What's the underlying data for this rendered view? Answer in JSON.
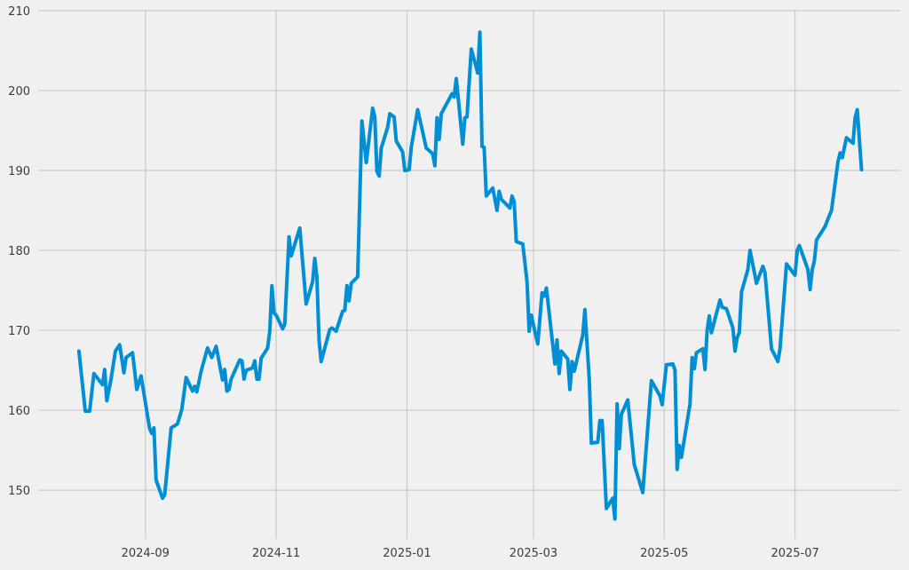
{
  "chart_data": {
    "type": "line",
    "title": "",
    "xlabel": "",
    "ylabel": "",
    "grid": true,
    "legend": "none",
    "line_color": "#008fd5",
    "background_color": "#f0f0f0",
    "grid_color": "#cbcbcb",
    "xlim": [
      "2024-07-13",
      "2025-08-19"
    ],
    "ylim": [
      143.9,
      210
    ],
    "x_ticks": [
      {
        "date": "2024-09-01",
        "label": "2024-09"
      },
      {
        "date": "2024-11-01",
        "label": "2024-11"
      },
      {
        "date": "2025-01-01",
        "label": "2025-01"
      },
      {
        "date": "2025-03-01",
        "label": "2025-03"
      },
      {
        "date": "2025-05-01",
        "label": "2025-05"
      },
      {
        "date": "2025-07-01",
        "label": "2025-07"
      }
    ],
    "y_ticks": [
      {
        "value": 150,
        "label": "150"
      },
      {
        "value": 160,
        "label": "160"
      },
      {
        "value": 170,
        "label": "170"
      },
      {
        "value": 180,
        "label": "180"
      },
      {
        "value": 190,
        "label": "190"
      },
      {
        "value": 200,
        "label": "200"
      },
      {
        "value": 210,
        "label": "210"
      }
    ],
    "series": [
      {
        "points": [
          [
            "2024-08-01",
            167.4
          ],
          [
            "2024-08-04",
            159.9
          ],
          [
            "2024-08-06",
            159.9
          ],
          [
            "2024-08-08",
            164.6
          ],
          [
            "2024-08-12",
            163.2
          ],
          [
            "2024-08-13",
            165.1
          ],
          [
            "2024-08-14",
            161.2
          ],
          [
            "2024-08-16",
            163.9
          ],
          [
            "2024-08-18",
            167.4
          ],
          [
            "2024-08-20",
            168.2
          ],
          [
            "2024-08-22",
            164.7
          ],
          [
            "2024-08-23",
            166.6
          ],
          [
            "2024-08-26",
            167.2
          ],
          [
            "2024-08-28",
            162.6
          ],
          [
            "2024-08-30",
            164.3
          ],
          [
            "2024-09-03",
            157.7
          ],
          [
            "2024-09-04",
            157.1
          ],
          [
            "2024-09-05",
            157.8
          ],
          [
            "2024-09-06",
            151.3
          ],
          [
            "2024-09-09",
            149.0
          ],
          [
            "2024-09-10",
            149.4
          ],
          [
            "2024-09-13",
            157.8
          ],
          [
            "2024-09-16",
            158.3
          ],
          [
            "2024-09-18",
            160.1
          ],
          [
            "2024-09-20",
            164.1
          ],
          [
            "2024-09-23",
            162.4
          ],
          [
            "2024-09-24",
            163.0
          ],
          [
            "2024-09-25",
            162.3
          ],
          [
            "2024-09-27",
            164.9
          ],
          [
            "2024-09-30",
            167.8
          ],
          [
            "2024-10-02",
            166.6
          ],
          [
            "2024-10-04",
            168.0
          ],
          [
            "2024-10-07",
            163.8
          ],
          [
            "2024-10-08",
            165.1
          ],
          [
            "2024-10-09",
            162.4
          ],
          [
            "2024-10-10",
            162.6
          ],
          [
            "2024-10-11",
            163.9
          ],
          [
            "2024-10-15",
            166.3
          ],
          [
            "2024-10-16",
            166.2
          ],
          [
            "2024-10-17",
            163.9
          ],
          [
            "2024-10-18",
            165.0
          ],
          [
            "2024-10-21",
            165.3
          ],
          [
            "2024-10-22",
            166.2
          ],
          [
            "2024-10-23",
            163.9
          ],
          [
            "2024-10-24",
            163.9
          ],
          [
            "2024-10-25",
            166.5
          ],
          [
            "2024-10-28",
            167.8
          ],
          [
            "2024-10-29",
            169.9
          ],
          [
            "2024-10-30",
            175.6
          ],
          [
            "2024-10-31",
            172.2
          ],
          [
            "2024-11-01",
            171.9
          ],
          [
            "2024-11-04",
            170.2
          ],
          [
            "2024-11-05",
            170.8
          ],
          [
            "2024-11-07",
            181.7
          ],
          [
            "2024-11-08",
            179.3
          ],
          [
            "2024-11-12",
            182.8
          ],
          [
            "2024-11-15",
            173.3
          ],
          [
            "2024-11-18",
            176.1
          ],
          [
            "2024-11-19",
            179.0
          ],
          [
            "2024-11-20",
            176.7
          ],
          [
            "2024-11-21",
            168.8
          ],
          [
            "2024-11-22",
            166.1
          ],
          [
            "2024-11-26",
            170.1
          ],
          [
            "2024-11-27",
            170.3
          ],
          [
            "2024-11-29",
            169.9
          ],
          [
            "2024-12-02",
            172.4
          ],
          [
            "2024-12-03",
            172.5
          ],
          [
            "2024-12-04",
            175.6
          ],
          [
            "2024-12-05",
            173.7
          ],
          [
            "2024-12-06",
            175.9
          ],
          [
            "2024-12-09",
            176.7
          ],
          [
            "2024-12-11",
            196.2
          ],
          [
            "2024-12-13",
            191.0
          ],
          [
            "2024-12-16",
            197.8
          ],
          [
            "2024-12-17",
            196.7
          ],
          [
            "2024-12-18",
            189.9
          ],
          [
            "2024-12-19",
            189.3
          ],
          [
            "2024-12-20",
            192.8
          ],
          [
            "2024-12-23",
            195.4
          ],
          [
            "2024-12-24",
            197.1
          ],
          [
            "2024-12-26",
            196.7
          ],
          [
            "2024-12-27",
            193.7
          ],
          [
            "2024-12-30",
            192.3
          ],
          [
            "2024-12-31",
            190.0
          ],
          [
            "2025-01-02",
            190.1
          ],
          [
            "2025-01-03",
            192.9
          ],
          [
            "2025-01-06",
            197.6
          ],
          [
            "2025-01-10",
            192.8
          ],
          [
            "2025-01-13",
            192.1
          ],
          [
            "2025-01-14",
            190.6
          ],
          [
            "2025-01-15",
            196.6
          ],
          [
            "2025-01-16",
            193.9
          ],
          [
            "2025-01-17",
            197.1
          ],
          [
            "2025-01-22",
            199.6
          ],
          [
            "2025-01-23",
            199.2
          ],
          [
            "2025-01-24",
            201.5
          ],
          [
            "2025-01-27",
            193.3
          ],
          [
            "2025-01-28",
            196.6
          ],
          [
            "2025-01-29",
            196.7
          ],
          [
            "2025-01-31",
            205.2
          ],
          [
            "2025-02-03",
            202.2
          ],
          [
            "2025-02-04",
            207.3
          ],
          [
            "2025-02-05",
            193.0
          ],
          [
            "2025-02-06",
            192.9
          ],
          [
            "2025-02-07",
            186.8
          ],
          [
            "2025-02-10",
            187.8
          ],
          [
            "2025-02-12",
            185.0
          ],
          [
            "2025-02-13",
            187.4
          ],
          [
            "2025-02-14",
            186.4
          ],
          [
            "2025-02-18",
            185.3
          ],
          [
            "2025-02-19",
            186.8
          ],
          [
            "2025-02-20",
            186.1
          ],
          [
            "2025-02-21",
            181.1
          ],
          [
            "2025-02-24",
            180.8
          ],
          [
            "2025-02-26",
            176.1
          ],
          [
            "2025-02-27",
            169.9
          ],
          [
            "2025-02-28",
            171.9
          ],
          [
            "2025-03-03",
            168.3
          ],
          [
            "2025-03-05",
            174.7
          ],
          [
            "2025-03-06",
            174.3
          ],
          [
            "2025-03-07",
            175.3
          ],
          [
            "2025-03-11",
            165.8
          ],
          [
            "2025-03-12",
            168.8
          ],
          [
            "2025-03-13",
            164.6
          ],
          [
            "2025-03-14",
            167.4
          ],
          [
            "2025-03-17",
            166.4
          ],
          [
            "2025-03-18",
            162.6
          ],
          [
            "2025-03-19",
            166.1
          ],
          [
            "2025-03-20",
            164.9
          ],
          [
            "2025-03-24",
            169.4
          ],
          [
            "2025-03-25",
            172.6
          ],
          [
            "2025-03-27",
            163.9
          ],
          [
            "2025-03-28",
            155.9
          ],
          [
            "2025-03-31",
            156.0
          ],
          [
            "2025-04-01",
            158.7
          ],
          [
            "2025-04-02",
            158.7
          ],
          [
            "2025-04-04",
            147.7
          ],
          [
            "2025-04-07",
            149.0
          ],
          [
            "2025-04-08",
            146.4
          ],
          [
            "2025-04-09",
            160.8
          ],
          [
            "2025-04-10",
            155.2
          ],
          [
            "2025-04-11",
            159.5
          ],
          [
            "2025-04-14",
            161.3
          ],
          [
            "2025-04-17",
            153.2
          ],
          [
            "2025-04-21",
            149.7
          ],
          [
            "2025-04-25",
            163.7
          ],
          [
            "2025-04-29",
            161.8
          ],
          [
            "2025-04-30",
            160.7
          ],
          [
            "2025-05-02",
            165.7
          ],
          [
            "2025-05-05",
            165.8
          ],
          [
            "2025-05-06",
            165.0
          ],
          [
            "2025-05-07",
            152.6
          ],
          [
            "2025-05-08",
            155.6
          ],
          [
            "2025-05-09",
            154.1
          ],
          [
            "2025-05-13",
            160.8
          ],
          [
            "2025-05-14",
            166.6
          ],
          [
            "2025-05-15",
            165.2
          ],
          [
            "2025-05-16",
            167.2
          ],
          [
            "2025-05-19",
            167.7
          ],
          [
            "2025-05-20",
            165.1
          ],
          [
            "2025-05-21",
            170.0
          ],
          [
            "2025-05-22",
            171.8
          ],
          [
            "2025-05-23",
            169.7
          ],
          [
            "2025-05-27",
            173.8
          ],
          [
            "2025-05-28",
            172.9
          ],
          [
            "2025-05-30",
            172.7
          ],
          [
            "2025-06-02",
            170.3
          ],
          [
            "2025-06-03",
            167.4
          ],
          [
            "2025-06-04",
            169.1
          ],
          [
            "2025-06-05",
            169.7
          ],
          [
            "2025-06-06",
            174.8
          ],
          [
            "2025-06-09",
            177.6
          ],
          [
            "2025-06-10",
            180.0
          ],
          [
            "2025-06-13",
            175.9
          ],
          [
            "2025-06-16",
            178.0
          ],
          [
            "2025-06-17",
            177.2
          ],
          [
            "2025-06-20",
            167.7
          ],
          [
            "2025-06-23",
            166.1
          ],
          [
            "2025-06-24",
            167.7
          ],
          [
            "2025-06-27",
            178.3
          ],
          [
            "2025-07-01",
            176.9
          ],
          [
            "2025-07-02",
            180.0
          ],
          [
            "2025-07-03",
            180.6
          ],
          [
            "2025-07-07",
            177.6
          ],
          [
            "2025-07-08",
            175.1
          ],
          [
            "2025-07-09",
            177.6
          ],
          [
            "2025-07-10",
            178.7
          ],
          [
            "2025-07-11",
            181.3
          ],
          [
            "2025-07-15",
            183.0
          ],
          [
            "2025-07-16",
            183.7
          ],
          [
            "2025-07-18",
            185.0
          ],
          [
            "2025-07-21",
            191.1
          ],
          [
            "2025-07-22",
            192.2
          ],
          [
            "2025-07-23",
            191.6
          ],
          [
            "2025-07-25",
            194.1
          ],
          [
            "2025-07-28",
            193.4
          ],
          [
            "2025-07-29",
            196.6
          ],
          [
            "2025-07-30",
            197.6
          ],
          [
            "2025-08-01",
            190.1
          ]
        ]
      }
    ]
  }
}
